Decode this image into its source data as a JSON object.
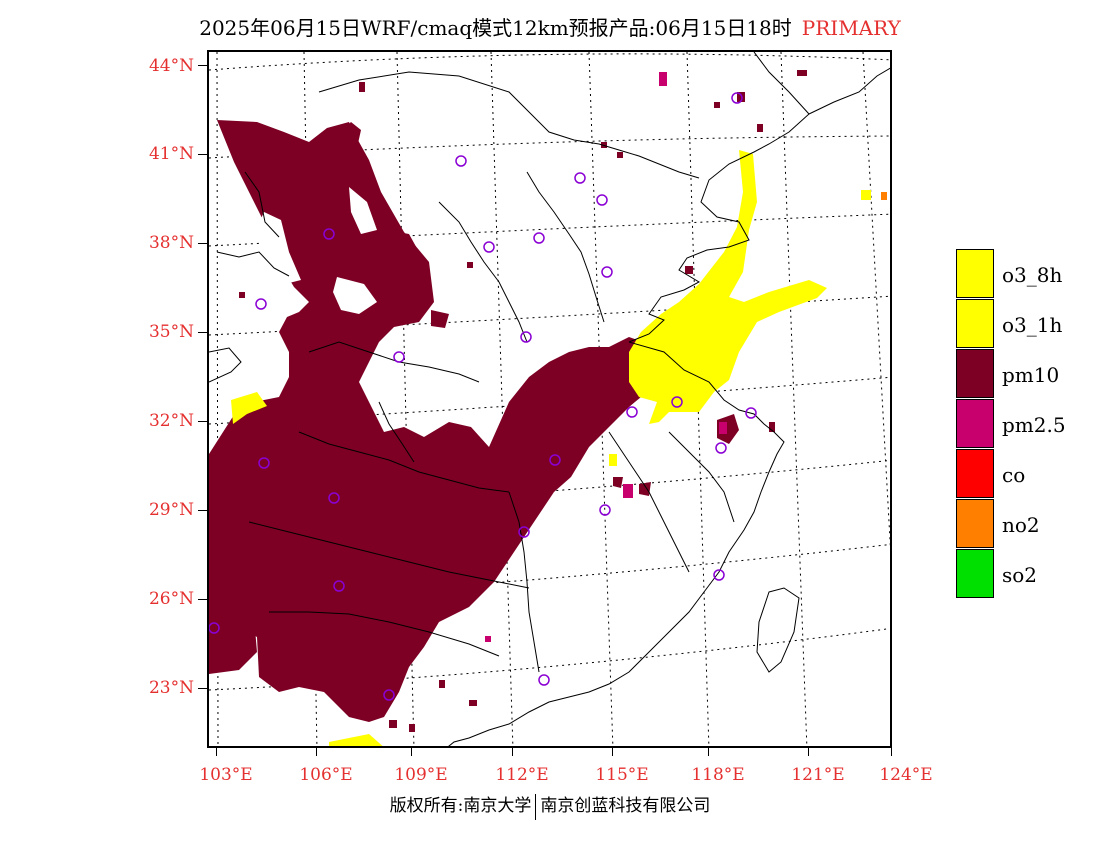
{
  "title": "2025年06月15日WRF/cmaq模式12km预报产品:06月15日18时",
  "title_tag": "PRIMARY",
  "map": {
    "lat_labels": [
      "44°N",
      "41°N",
      "38°N",
      "35°N",
      "32°N",
      "29°N",
      "26°N",
      "23°N"
    ],
    "lon_labels": [
      "103°E",
      "106°E",
      "109°E",
      "112°E",
      "115°E",
      "118°E",
      "121°E",
      "124°E"
    ]
  },
  "legend": [
    {
      "label": "o3_8h",
      "color": "#ffff00"
    },
    {
      "label": "o3_1h",
      "color": "#ffff00"
    },
    {
      "label": "pm10",
      "color": "#7d0024"
    },
    {
      "label": "pm2.5",
      "color": "#c8006e"
    },
    {
      "label": "co",
      "color": "#ff0000"
    },
    {
      "label": "no2",
      "color": "#ff7f00"
    },
    {
      "label": "so2",
      "color": "#00e000"
    }
  ],
  "colors": {
    "pm10": "#7d0024",
    "o3": "#ffff00",
    "pm25": "#c8006e",
    "site": "#8a00d4",
    "label": "#e53030"
  },
  "footer": {
    "left": "版权所有:南京大学",
    "right": "南京创蓝科技有限公司"
  }
}
